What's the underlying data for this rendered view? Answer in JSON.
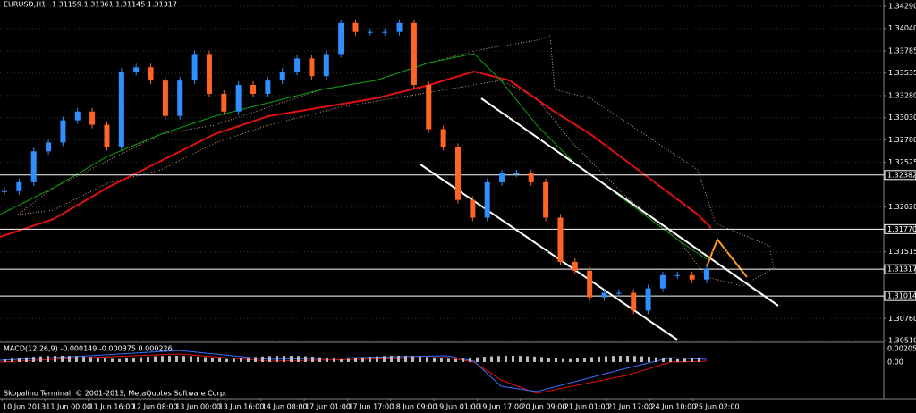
{
  "header": {
    "title": "EURUSD,H1",
    "ohlc": "1.31159 1.31361 1.31145 1.31317"
  },
  "price_axis": [
    {
      "value": 1.3429,
      "label": "1.34290"
    },
    {
      "value": 1.3404,
      "label": "1.34040"
    },
    {
      "value": 1.33785,
      "label": "1.33785"
    },
    {
      "value": 1.33535,
      "label": "1.33535"
    },
    {
      "value": 1.3328,
      "label": "1.33280"
    },
    {
      "value": 1.3303,
      "label": "1.33030"
    },
    {
      "value": 1.3278,
      "label": "1.32780"
    },
    {
      "value": 1.32525,
      "label": "1.32525"
    },
    {
      "value": 1.3202,
      "label": "1.32020"
    },
    {
      "value": 1.31515,
      "label": "1.31515"
    },
    {
      "value": 1.3076,
      "label": "1.30760"
    },
    {
      "value": 1.3051,
      "label": "1.30510"
    }
  ],
  "levels": [
    {
      "value": 1.32382,
      "label": "1.32382"
    },
    {
      "value": 1.3177,
      "label": "1.31770"
    },
    {
      "value": 1.31317,
      "label": "1.31317"
    },
    {
      "value": 1.31014,
      "label": "1.31014"
    }
  ],
  "price_series": [
    1.322,
    1.323,
    1.3265,
    1.3275,
    1.33,
    1.331,
    1.3295,
    1.327,
    1.3355,
    1.336,
    1.3345,
    1.3305,
    1.3345,
    1.3375,
    1.333,
    1.331,
    1.334,
    1.333,
    1.3345,
    1.3355,
    1.337,
    1.335,
    1.3375,
    1.341,
    1.34,
    1.34,
    1.34,
    1.341,
    1.334,
    1.329,
    1.327,
    1.321,
    1.319,
    1.323,
    1.324,
    1.324,
    1.323,
    1.319,
    1.314,
    1.313,
    1.31,
    1.3105,
    1.3105,
    1.3085,
    1.311,
    1.3125,
    1.3125,
    1.312,
    1.3132
  ],
  "macd": {
    "label": "MACD(12,26,9) -0.000149 -0.000375 0.000226",
    "axis": [
      "0.00205",
      "0.00"
    ]
  },
  "time_axis": [
    "10 Jun 2013",
    "11 Jun 00:00",
    "11 Jun 16:00",
    "12 Jun 08:00",
    "13 Jun 00:00",
    "13 Jun 16:00",
    "14 Jun 08:00",
    "17 Jun 01:00",
    "17 Jun 17:00",
    "18 Jun 09:00",
    "19 Jun 01:00",
    "19 Jun 17:00",
    "20 Jun 09:00",
    "21 Jun 01:00",
    "21 Jun 17:00",
    "24 Jun 10:00",
    "25 Jun 02:00"
  ],
  "footer": "Skopalino Terminal, © 2001-2013, MetaQuotes Software Corp."
}
